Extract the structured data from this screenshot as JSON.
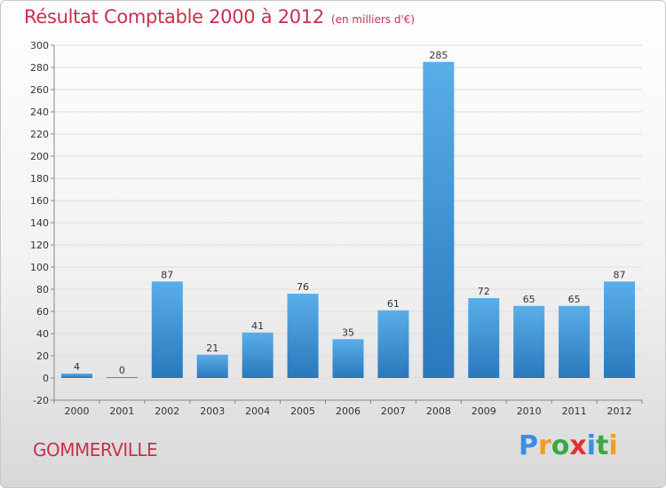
{
  "header": {
    "title": "Résultat Comptable 2000 à 2012",
    "subtitle": "(en milliers d'€)"
  },
  "footer": {
    "city": "GOMMERVILLE",
    "logo_letters": [
      "P",
      "r",
      "o",
      "x",
      "i",
      "t",
      "i"
    ],
    "logo_colors": [
      "#3a8ee6",
      "#f0a020",
      "#39a845",
      "#e63030",
      "#3a8ee6",
      "#39a845",
      "#f0a020"
    ]
  },
  "chart_data": {
    "type": "bar",
    "title": "Résultat Comptable 2000 à 2012",
    "subtitle": "(en milliers d'€)",
    "xlabel": "",
    "ylabel": "",
    "categories": [
      "2000",
      "2001",
      "2002",
      "2003",
      "2004",
      "2005",
      "2006",
      "2007",
      "2008",
      "2009",
      "2010",
      "2011",
      "2012"
    ],
    "values": [
      4,
      0,
      87,
      21,
      41,
      76,
      35,
      61,
      285,
      72,
      65,
      65,
      87
    ],
    "value_labels": [
      "4",
      "0",
      "87",
      "21",
      "41",
      "76",
      "35",
      "61",
      "285",
      "72",
      "65",
      "65",
      "87"
    ],
    "ylim": [
      -20,
      300
    ],
    "yticks": [
      -20,
      0,
      20,
      40,
      60,
      80,
      100,
      120,
      140,
      160,
      180,
      200,
      220,
      240,
      260,
      280,
      300
    ],
    "grid": true,
    "bar_color_light": "#5aaee8",
    "bar_color_dark": "#2a78bc"
  }
}
